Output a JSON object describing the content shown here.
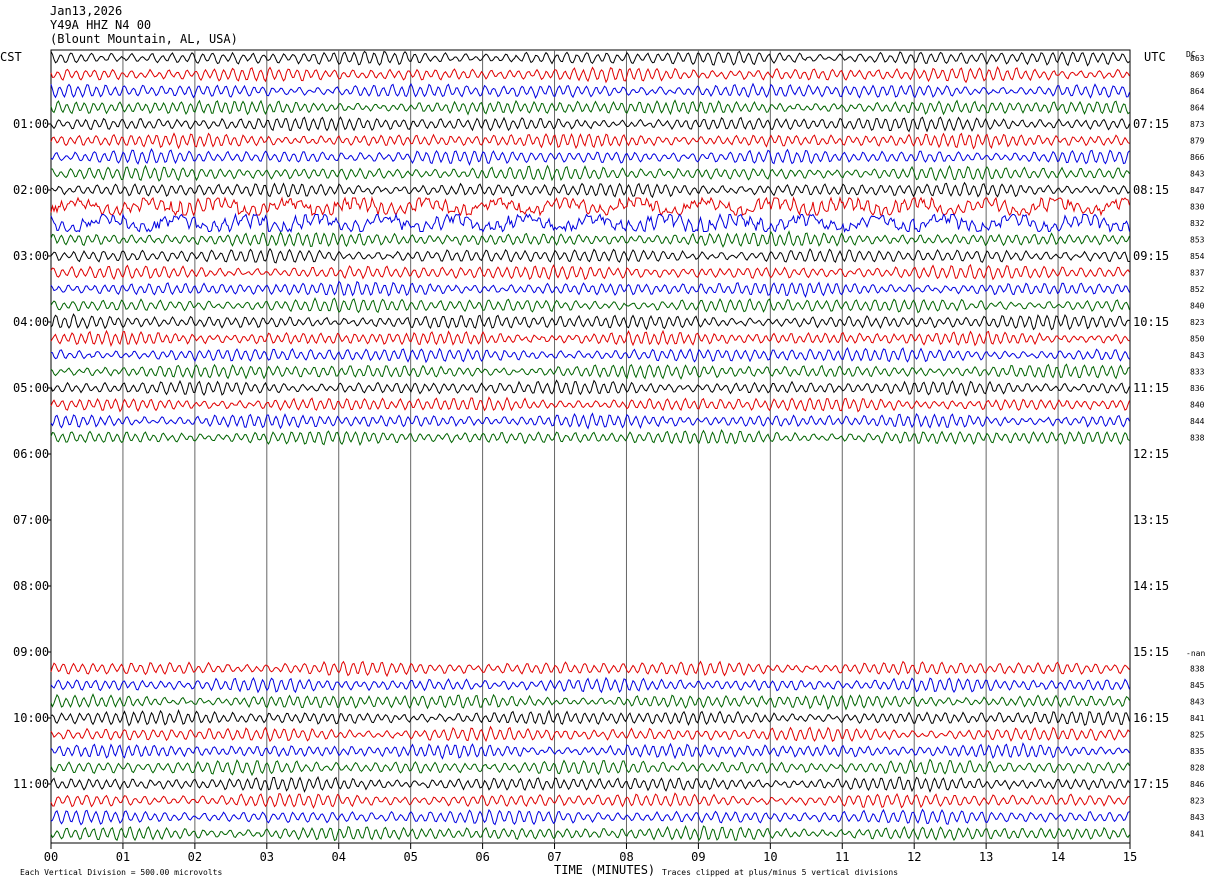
{
  "header": {
    "date": "Jan13,2026",
    "station": "Y49A HHZ N4 00",
    "location": "(Blount Mountain, AL, USA)"
  },
  "axes": {
    "left_zone": "CST",
    "right_zone": "UTC",
    "dc_label": "DC",
    "xlabel": "TIME (MINUTES)",
    "footer_left": "Each Vertical Division =  500.00 microvolts",
    "footer_right": "Traces clipped at plus/minus 5 vertical divisions",
    "nan_label": "-nan"
  },
  "chart_data": {
    "type": "line",
    "x_range": [
      0,
      15
    ],
    "x_ticks": [
      "00",
      "01",
      "02",
      "03",
      "04",
      "05",
      "06",
      "07",
      "08",
      "09",
      "10",
      "11",
      "12",
      "13",
      "14",
      "15"
    ],
    "grid": "vertical lines at each minute",
    "trace_minutes": 15,
    "trace_colors": [
      "#000000",
      "#e00000",
      "#0000e0",
      "#006400"
    ],
    "left_hour_labels": [
      "01:00",
      "02:00",
      "03:00",
      "04:00",
      "05:00",
      "06:00",
      "07:00",
      "08:00",
      "09:00",
      "10:00",
      "11:00"
    ],
    "right_hour_labels": [
      "07:15",
      "08:15",
      "09:15",
      "10:15",
      "11:15",
      "12:15",
      "13:15",
      "14:15",
      "15:15",
      "16:15",
      "17:15"
    ],
    "top_block": {
      "dc_values": [
        "863",
        "869",
        "864",
        "864",
        "873",
        "879",
        "866",
        "843",
        "847",
        "830",
        "832",
        "853",
        "854",
        "837",
        "852",
        "840",
        "823",
        "850",
        "843",
        "833",
        "836",
        "840",
        "844",
        "838"
      ],
      "noisy_traces": [
        9,
        10
      ]
    },
    "bottom_block": {
      "dc_values": [
        "838",
        "845",
        "843",
        "841",
        "825",
        "835",
        "828",
        "846",
        "823",
        "843",
        "841"
      ],
      "first_color_index": 1
    }
  }
}
